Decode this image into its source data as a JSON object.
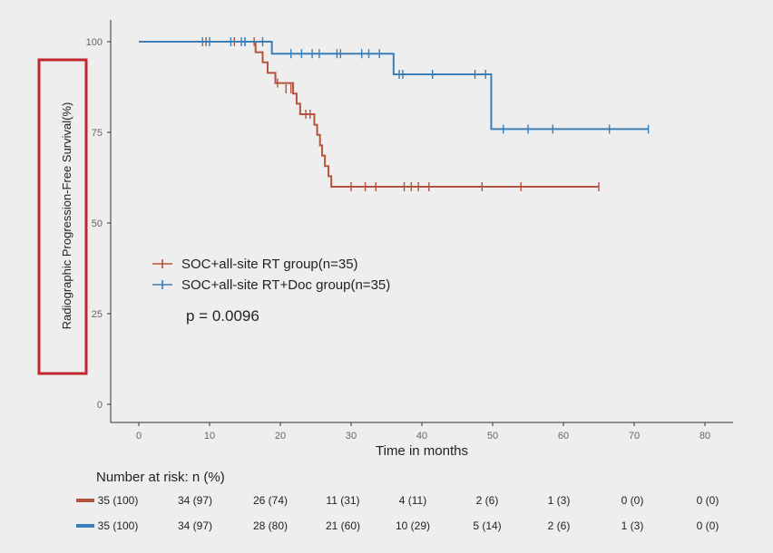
{
  "chart_data": {
    "type": "line",
    "xlabel": "Time in months",
    "ylabel": "Radiographic Progression-Free Survival(%)",
    "xlim": [
      0,
      80
    ],
    "ylim": [
      0,
      100
    ],
    "x_ticks": [
      "0",
      "10",
      "20",
      "30",
      "40",
      "50",
      "60",
      "70",
      "80"
    ],
    "y_ticks": [
      "0",
      "25",
      "50",
      "75",
      "100"
    ],
    "grid": false,
    "legend_position": "lower-left",
    "annotation": "p = 0.0096",
    "series": [
      {
        "name": "SOC+all-site RT group(n=35)",
        "color": "#b5533c",
        "steps": [
          [
            0,
            100
          ],
          [
            16.5,
            97.1
          ],
          [
            17.5,
            94.3
          ],
          [
            18.2,
            91.4
          ],
          [
            19.3,
            88.6
          ],
          [
            21.8,
            85.7
          ],
          [
            22.3,
            82.9
          ],
          [
            22.8,
            80
          ],
          [
            24.8,
            77.1
          ],
          [
            25.2,
            74.3
          ],
          [
            25.6,
            71.4
          ],
          [
            25.9,
            68.6
          ],
          [
            26.3,
            65.7
          ],
          [
            26.8,
            62.9
          ],
          [
            27.2,
            60
          ],
          [
            65,
            60
          ]
        ],
        "censor": [
          [
            9.5,
            100
          ],
          [
            13.5,
            100
          ],
          [
            15,
            100
          ],
          [
            16.3,
            100
          ],
          [
            19.6,
            88.6
          ],
          [
            20.8,
            87
          ],
          [
            21.5,
            87
          ],
          [
            23.6,
            80
          ],
          [
            24.2,
            80
          ],
          [
            30,
            60
          ],
          [
            32,
            60
          ],
          [
            33.5,
            60
          ],
          [
            37.5,
            60
          ],
          [
            38.5,
            60
          ],
          [
            39.5,
            60
          ],
          [
            41,
            60
          ],
          [
            48.5,
            60
          ],
          [
            54,
            60
          ],
          [
            65,
            60
          ]
        ]
      },
      {
        "name": "SOC+all-site RT+Doc group(n=35)",
        "color": "#3a7fb8",
        "steps": [
          [
            0,
            100
          ],
          [
            18.8,
            96.7
          ],
          [
            36,
            91
          ],
          [
            49.8,
            75.9
          ],
          [
            72,
            75.9
          ]
        ],
        "censor": [
          [
            9,
            100
          ],
          [
            10,
            100
          ],
          [
            13,
            100
          ],
          [
            14.5,
            100
          ],
          [
            15,
            100
          ],
          [
            17.5,
            100
          ],
          [
            21.5,
            96.7
          ],
          [
            23,
            96.7
          ],
          [
            24.5,
            96.7
          ],
          [
            25.5,
            96.7
          ],
          [
            28,
            96.7
          ],
          [
            28.5,
            96.7
          ],
          [
            31.5,
            96.7
          ],
          [
            32.5,
            96.7
          ],
          [
            34,
            96.7
          ],
          [
            36.8,
            91
          ],
          [
            37.3,
            91
          ],
          [
            41.5,
            91
          ],
          [
            47.5,
            91
          ],
          [
            49,
            91
          ],
          [
            51.5,
            75.9
          ],
          [
            55,
            75.9
          ],
          [
            58.5,
            75.9
          ],
          [
            66.5,
            75.9
          ],
          [
            72,
            75.9
          ]
        ]
      }
    ]
  },
  "risk_table": {
    "title": "Number at risk: n (%)",
    "rows": [
      {
        "color": "#b5533c",
        "cells": [
          "35 (100)",
          "34 (97)",
          "26 (74)",
          "11 (31)",
          "4 (11)",
          "2 (6)",
          "1 (3)",
          "0 (0)",
          "0 (0)"
        ]
      },
      {
        "color": "#3a7fb8",
        "cells": [
          "35 (100)",
          "34 (97)",
          "28 (80)",
          "21 (60)",
          "10 (29)",
          "5 (14)",
          "2 (6)",
          "1 (3)",
          "0 (0)"
        ]
      }
    ]
  },
  "highlight_box_color": "#c0282d"
}
